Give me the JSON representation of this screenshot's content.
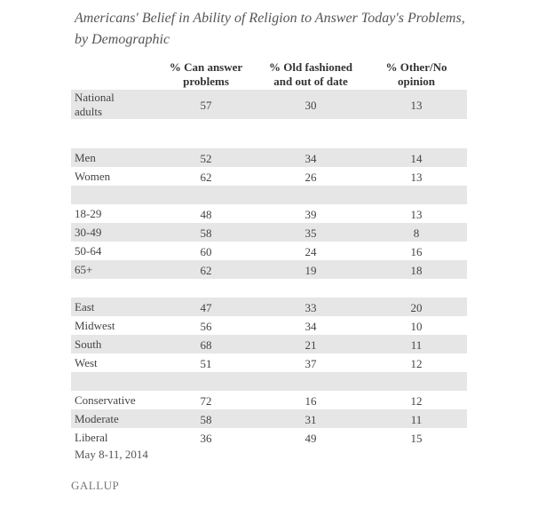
{
  "title": [
    "Americans' Belief in Ability of Religion to Answer Today's Problems,",
    "by Demographic"
  ],
  "table": {
    "columns": [
      [
        "% Can answer",
        "problems"
      ],
      [
        "% Old fashioned",
        "and out of date"
      ],
      [
        "% Other/No",
        "opinion"
      ]
    ],
    "groups": [
      [
        {
          "label": [
            "National",
            "adults"
          ],
          "values": [
            57,
            30,
            13
          ]
        }
      ],
      [
        {
          "label": [
            "Men"
          ],
          "values": [
            52,
            34,
            14
          ]
        },
        {
          "label": [
            "Women"
          ],
          "values": [
            62,
            26,
            13
          ]
        }
      ],
      [
        {
          "label": [
            "18-29"
          ],
          "values": [
            48,
            39,
            13
          ]
        },
        {
          "label": [
            "30-49"
          ],
          "values": [
            58,
            35,
            8
          ]
        },
        {
          "label": [
            "50-64"
          ],
          "values": [
            60,
            24,
            16
          ]
        },
        {
          "label": [
            "65+"
          ],
          "values": [
            62,
            19,
            18
          ]
        }
      ],
      [
        {
          "label": [
            "East"
          ],
          "values": [
            47,
            33,
            20
          ]
        },
        {
          "label": [
            "Midwest"
          ],
          "values": [
            56,
            34,
            10
          ]
        },
        {
          "label": [
            "South"
          ],
          "values": [
            68,
            21,
            11
          ]
        },
        {
          "label": [
            "West"
          ],
          "values": [
            51,
            37,
            12
          ]
        }
      ],
      [
        {
          "label": [
            "Conservative"
          ],
          "values": [
            72,
            16,
            12
          ]
        },
        {
          "label": [
            "Moderate"
          ],
          "values": [
            58,
            31,
            11
          ]
        },
        {
          "label": [
            "Liberal"
          ],
          "values": [
            36,
            49,
            15
          ]
        }
      ]
    ]
  },
  "footer": {
    "date": "May 8-11, 2014",
    "source": "GALLUP"
  }
}
